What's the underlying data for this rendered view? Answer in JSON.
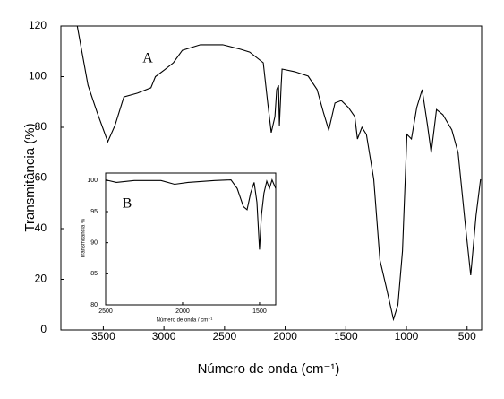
{
  "chart_data": [
    {
      "type": "line",
      "annotation": "A",
      "xlabel": "Número de onda (cm⁻¹)",
      "ylabel": "Transmitância (%)",
      "xlim": [
        3850,
        380
      ],
      "ylim": [
        0,
        120
      ],
      "xticks": [
        3500,
        3000,
        2500,
        2000,
        1500,
        1000,
        500
      ],
      "yticks": [
        0,
        20,
        40,
        60,
        80,
        100,
        120
      ],
      "color": "#000000",
      "x": [
        3715,
        3626,
        3552,
        3463,
        3404,
        3330,
        3219,
        3107,
        3070,
        2996,
        2922,
        2848,
        2700,
        2515,
        2367,
        2293,
        2181,
        2144,
        2115,
        2085,
        2070,
        2055,
        2048,
        2033,
        2026,
        1922,
        1811,
        1737,
        1685,
        1641,
        1589,
        1537,
        1478,
        1426,
        1404,
        1367,
        1330,
        1270,
        1219,
        1167,
        1107,
        1070,
        1033,
        996,
        959,
        915,
        870,
        826,
        796,
        752,
        700,
        626,
        574,
        515,
        470,
        426,
        389
      ],
      "values": [
        120,
        96.6,
        86,
        74.3,
        80.7,
        92,
        93.5,
        95.6,
        100,
        102.7,
        105.5,
        110.4,
        112.6,
        112.6,
        110.8,
        109.7,
        105.5,
        89.6,
        77.9,
        84.2,
        94.9,
        96.6,
        80.7,
        96.6,
        103,
        102,
        100.2,
        94.9,
        86,
        78.9,
        89.6,
        90.6,
        87.8,
        84.2,
        75.4,
        80,
        77.2,
        59.5,
        27.6,
        17,
        4.2,
        9.9,
        31.2,
        77.2,
        75.4,
        87.8,
        94.9,
        80.7,
        70,
        87,
        85,
        79,
        70,
        41.8,
        21.6,
        45.3,
        59.5
      ]
    },
    {
      "type": "line",
      "annotation": "B",
      "xlabel": "Número de onda / cm⁻¹",
      "ylabel": "Transmitância %",
      "xlim": [
        2500,
        1395
      ],
      "ylim": [
        80,
        101.2
      ],
      "xticks": [
        2500,
        2000,
        1500
      ],
      "yticks": [
        80,
        85,
        90,
        95,
        100
      ],
      "color": "#000000",
      "x": [
        2500,
        2430,
        2314,
        2140,
        2052,
        1965,
        1791,
        1686,
        1645,
        1605,
        1581,
        1558,
        1535,
        1517,
        1500,
        1488,
        1471,
        1453,
        1436,
        1419,
        1395
      ],
      "values": [
        100.1,
        99.7,
        100,
        100,
        99.4,
        99.7,
        100,
        100.1,
        98.7,
        95.8,
        95.3,
        98,
        99.7,
        96.5,
        88.9,
        94.4,
        98,
        99.9,
        98.7,
        100.1,
        98.7
      ]
    }
  ]
}
